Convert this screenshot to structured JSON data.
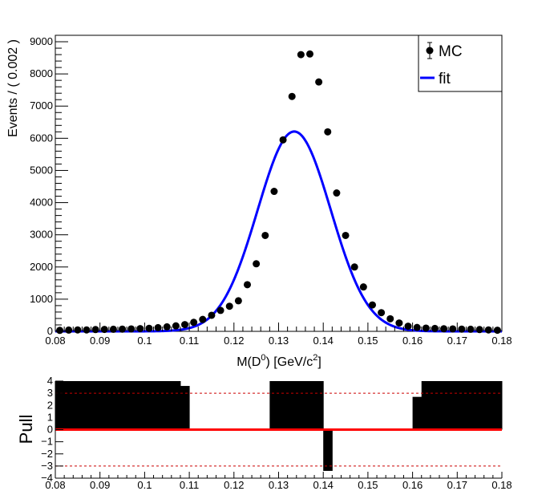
{
  "chart_data": [
    {
      "type": "scatter",
      "title": "",
      "xlabel_main": "M(D",
      "xlabel_sup1": "0",
      "xlabel_mid": ") [GeV/c",
      "xlabel_sup2": "2",
      "xlabel_end": "]",
      "ylabel": "Events / ( 0.002 )",
      "xlim": [
        0.08,
        0.18
      ],
      "ylim": [
        0,
        9200
      ],
      "xticks": [
        "0.08",
        "0.09",
        "0.1",
        "0.11",
        "0.12",
        "0.13",
        "0.14",
        "0.15",
        "0.16",
        "0.17",
        "0.18"
      ],
      "yticks": [
        "0",
        "1000",
        "2000",
        "3000",
        "4000",
        "5000",
        "6000",
        "7000",
        "8000",
        "9000"
      ],
      "legend": {
        "position": "top-right",
        "entries": [
          "MC",
          "fit"
        ]
      },
      "series": [
        {
          "name": "MC",
          "style": "points",
          "color": "#000000",
          "x": [
            0.081,
            0.083,
            0.085,
            0.087,
            0.089,
            0.091,
            0.093,
            0.095,
            0.097,
            0.099,
            0.101,
            0.103,
            0.105,
            0.107,
            0.109,
            0.111,
            0.113,
            0.115,
            0.117,
            0.119,
            0.121,
            0.123,
            0.125,
            0.127,
            0.129,
            0.131,
            0.133,
            0.135,
            0.137,
            0.139,
            0.141,
            0.143,
            0.145,
            0.147,
            0.149,
            0.151,
            0.153,
            0.155,
            0.157,
            0.159,
            0.161,
            0.163,
            0.165,
            0.167,
            0.169,
            0.171,
            0.173,
            0.175,
            0.177,
            0.179
          ],
          "y": [
            30,
            40,
            45,
            45,
            55,
            60,
            65,
            70,
            75,
            85,
            95,
            115,
            140,
            170,
            210,
            280,
            370,
            500,
            650,
            780,
            950,
            1450,
            2100,
            2980,
            4350,
            5950,
            7300,
            8600,
            8620,
            7750,
            6200,
            4300,
            2980,
            2000,
            1380,
            820,
            580,
            390,
            260,
            160,
            120,
            100,
            90,
            80,
            75,
            70,
            65,
            55,
            45,
            35
          ]
        },
        {
          "name": "fit",
          "style": "line",
          "color": "#0000ff",
          "gaussian": {
            "amplitude": 6210,
            "mean": 0.1335,
            "sigma": 0.0082
          }
        }
      ]
    },
    {
      "type": "bar",
      "title": "",
      "ylabel": "Pull",
      "xlim": [
        0.08,
        0.18
      ],
      "ylim": [
        -4,
        4
      ],
      "xticks": [
        "0.08",
        "0.09",
        "0.1",
        "0.11",
        "0.12",
        "0.13",
        "0.14",
        "0.15",
        "0.16",
        "0.17",
        "0.18"
      ],
      "yticks": [
        "4",
        "3",
        "2",
        "1",
        "0",
        "−1",
        "−2",
        "−3",
        "−4"
      ],
      "reference_lines": [
        3,
        -3,
        0
      ],
      "bin_width": 0.002,
      "x": [
        0.081,
        0.083,
        0.085,
        0.087,
        0.089,
        0.091,
        0.093,
        0.095,
        0.097,
        0.099,
        0.101,
        0.103,
        0.105,
        0.107,
        0.109,
        0.111,
        0.113,
        0.115,
        0.117,
        0.119,
        0.121,
        0.123,
        0.125,
        0.127,
        0.129,
        0.131,
        0.133,
        0.135,
        0.137,
        0.139,
        0.141,
        0.143,
        0.145,
        0.147,
        0.149,
        0.151,
        0.153,
        0.155,
        0.157,
        0.159,
        0.161,
        0.163,
        0.165,
        0.167,
        0.169,
        0.171,
        0.173,
        0.175,
        0.177,
        0.179
      ],
      "values": [
        4,
        4,
        4,
        4,
        4,
        4,
        4,
        4,
        4,
        4,
        4,
        4,
        4,
        4,
        3.6,
        0,
        0,
        0,
        0,
        0,
        0,
        0,
        0,
        0,
        4,
        4,
        4,
        4,
        4,
        4,
        -3.4,
        0,
        0,
        0,
        0,
        0,
        0,
        0,
        0,
        0,
        2.7,
        4,
        4,
        4,
        4,
        4,
        4,
        4,
        4,
        4
      ],
      "colors": {
        "bar": "#000000",
        "zero_line": "#ff0000",
        "reference": "#cc0000"
      }
    }
  ]
}
